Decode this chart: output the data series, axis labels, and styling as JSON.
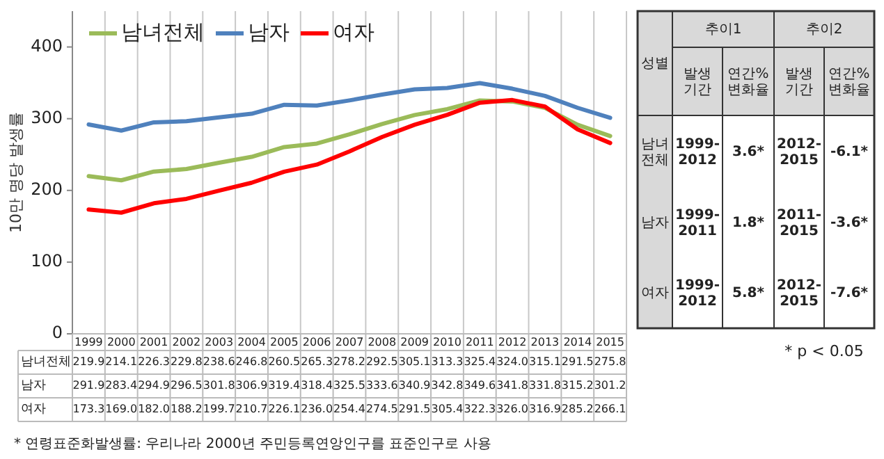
{
  "chart_data": {
    "type": "line",
    "ylabel": "10만 명당 발생률",
    "categories": [
      "1999",
      "2000",
      "2001",
      "2002",
      "2003",
      "2004",
      "2005",
      "2006",
      "2007",
      "2008",
      "2009",
      "2010",
      "2011",
      "2012",
      "2013",
      "2014",
      "2015"
    ],
    "series": [
      {
        "name": "남녀전체",
        "color": "#9bbb59",
        "values": [
          219.9,
          214.1,
          226.3,
          229.8,
          238.6,
          246.8,
          260.5,
          265.3,
          278.2,
          292.5,
          305.1,
          313.3,
          325.4,
          324.0,
          315.1,
          291.5,
          275.8
        ],
        "value_labels": [
          "219.9",
          "214.1",
          "226.3",
          "229.8",
          "238.6",
          "246.8",
          "260.5",
          "265.3",
          "278.2",
          "292.5",
          "305.1",
          "313.3",
          "325.4",
          "324.0",
          "315.1",
          "291.5",
          "275.8"
        ]
      },
      {
        "name": "남자",
        "color": "#4f81bd",
        "values": [
          291.9,
          283.4,
          294.9,
          296.5,
          301.8,
          306.9,
          319.4,
          318.4,
          325.5,
          333.6,
          340.9,
          342.8,
          349.6,
          341.8,
          331.8,
          315.2,
          301.2
        ],
        "value_labels": [
          "291.9",
          "283.4",
          "294.9",
          "296.5",
          "301.8",
          "306.9",
          "319.4",
          "318.4",
          "325.5",
          "333.6",
          "340.9",
          "342.8",
          "349.6",
          "341.8",
          "331.8",
          "315.2",
          "301.2"
        ]
      },
      {
        "name": "여자",
        "color": "#ff0000",
        "values": [
          173.3,
          169.0,
          182.0,
          188.2,
          199.7,
          210.7,
          226.1,
          236.0,
          254.4,
          274.5,
          291.5,
          305.4,
          322.3,
          326.0,
          316.9,
          285.2,
          266.1
        ],
        "value_labels": [
          "173.3",
          "169.0",
          "182.0",
          "188.2",
          "199.7",
          "210.7",
          "226.1",
          "236.0",
          "254.4",
          "274.5",
          "291.5",
          "305.4",
          "322.3",
          "326.0",
          "316.9",
          "285.2",
          "266.1"
        ]
      }
    ],
    "ylim": [
      0,
      450
    ],
    "yticks": [
      0,
      100,
      200,
      300,
      400
    ],
    "grid": "x",
    "legend": "top left",
    "marker": "none",
    "line_style": "solid",
    "annotations": [
      "* 연령표준화발생률: 우리나라 2000년 주민등록연앙인구를 표준인구로 사용",
      "* p < 0.05",
      "성별",
      "추이1",
      "추이2",
      "발생\n기간",
      "연간%\n변화율",
      "발생\n기간",
      "연간%\n변화율",
      "남녀\n전체",
      "1999-\n2012",
      "3.6*",
      "2012-\n2015",
      "-6.1*",
      "남자",
      "1999-\n2011",
      "1.8*",
      "2011-\n2015",
      "-3.6*",
      "여자",
      "1999-\n2012",
      "5.8*",
      "2012-\n2015",
      "-7.6*"
    ]
  }
}
